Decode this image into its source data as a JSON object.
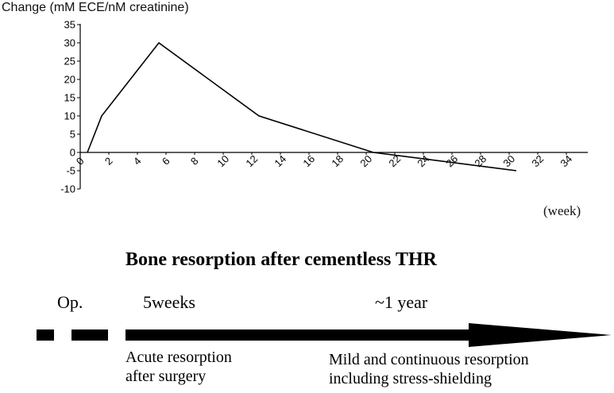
{
  "chart_data": {
    "type": "line",
    "ylabel": "Change (mM ECE/nM creatinine)",
    "xlabel": "(week)",
    "x_ticks": [
      "0",
      "2",
      "4",
      "6",
      "8",
      "10",
      "12",
      "14",
      "16",
      "18",
      "20",
      "22",
      "24",
      "26",
      "28",
      "30",
      "32",
      "34"
    ],
    "y_ticks": [
      "35",
      "30",
      "25",
      "20",
      "15",
      "10",
      "5",
      "0",
      "-5",
      "-10"
    ],
    "xlim": [
      0,
      34
    ],
    "ylim": [
      -10,
      35
    ],
    "grid": false,
    "series": [
      {
        "x": [
          0.5,
          1.5,
          5.5,
          12.5,
          20.5,
          30.5
        ],
        "y": [
          0,
          10,
          30,
          10,
          0,
          -5
        ]
      }
    ]
  },
  "timeline": {
    "title": "Bone resorption after cementless THR",
    "markers": {
      "op": "Op.",
      "five_weeks": "5weeks",
      "one_year": "~1 year"
    },
    "captions": {
      "acute_1": "Acute resorption",
      "acute_2": "after surgery",
      "mild_1": "Mild and continuous resorption",
      "mild_2": "including stress-shielding"
    }
  }
}
